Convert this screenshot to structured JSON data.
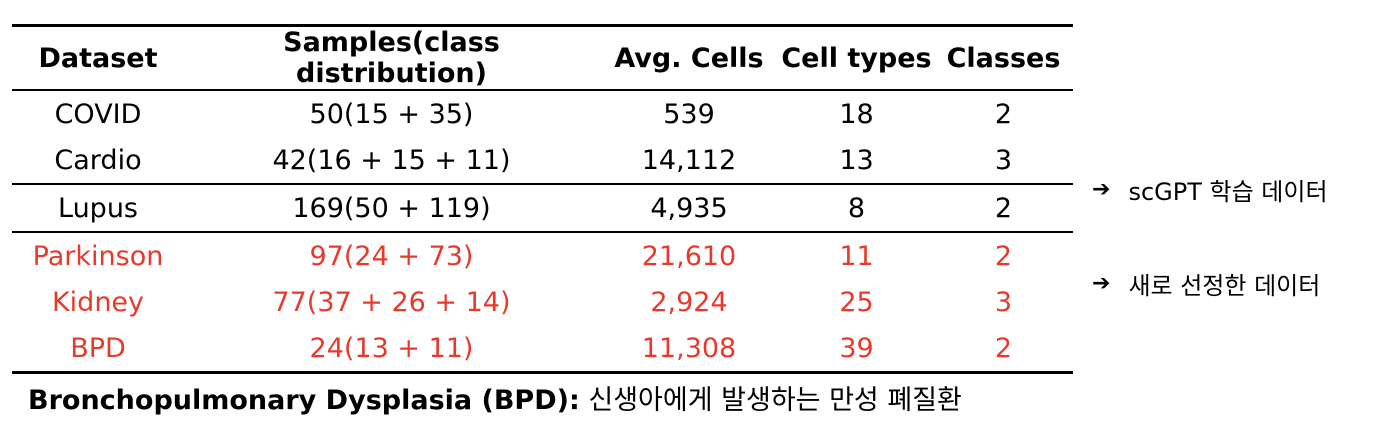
{
  "colors": {
    "text": "#000000",
    "accent": "#e8392b"
  },
  "table": {
    "headers": [
      "Dataset",
      "Samples(class distribution)",
      "Avg. Cells",
      "Cell types",
      "Classes"
    ],
    "rows": [
      {
        "dataset": "COVID",
        "samples": "50(15 + 35)",
        "avg_cells": "539",
        "cell_types": "18",
        "classes": "2",
        "highlight": false
      },
      {
        "dataset": "Cardio",
        "samples": "42(16 + 15 + 11)",
        "avg_cells": "14,112",
        "cell_types": "13",
        "classes": "3",
        "highlight": false
      },
      {
        "dataset": "Lupus",
        "samples": "169(50 + 119)",
        "avg_cells": "4,935",
        "cell_types": "8",
        "classes": "2",
        "highlight": false
      },
      {
        "dataset": "Parkinson",
        "samples": "97(24 + 73)",
        "avg_cells": "21,610",
        "cell_types": "11",
        "classes": "2",
        "highlight": true
      },
      {
        "dataset": "Kidney",
        "samples": "77(37 + 26 + 14)",
        "avg_cells": "2,924",
        "cell_types": "25",
        "classes": "3",
        "highlight": true
      },
      {
        "dataset": "BPD",
        "samples": "24(13 + 11)",
        "avg_cells": "11,308",
        "cell_types": "39",
        "classes": "2",
        "highlight": true
      }
    ]
  },
  "notes": [
    {
      "icon": "arrow-right-icon",
      "arrow": "➔",
      "text": "scGPT 학습 데이터"
    },
    {
      "icon": "arrow-right-icon",
      "arrow": "➔",
      "text": "새로 선정한 데이터"
    }
  ],
  "footnote": {
    "term": "Bronchopulmonary Dysplasia (BPD):",
    "definition": " 신생아에게 발생하는 만성 폐질환"
  }
}
